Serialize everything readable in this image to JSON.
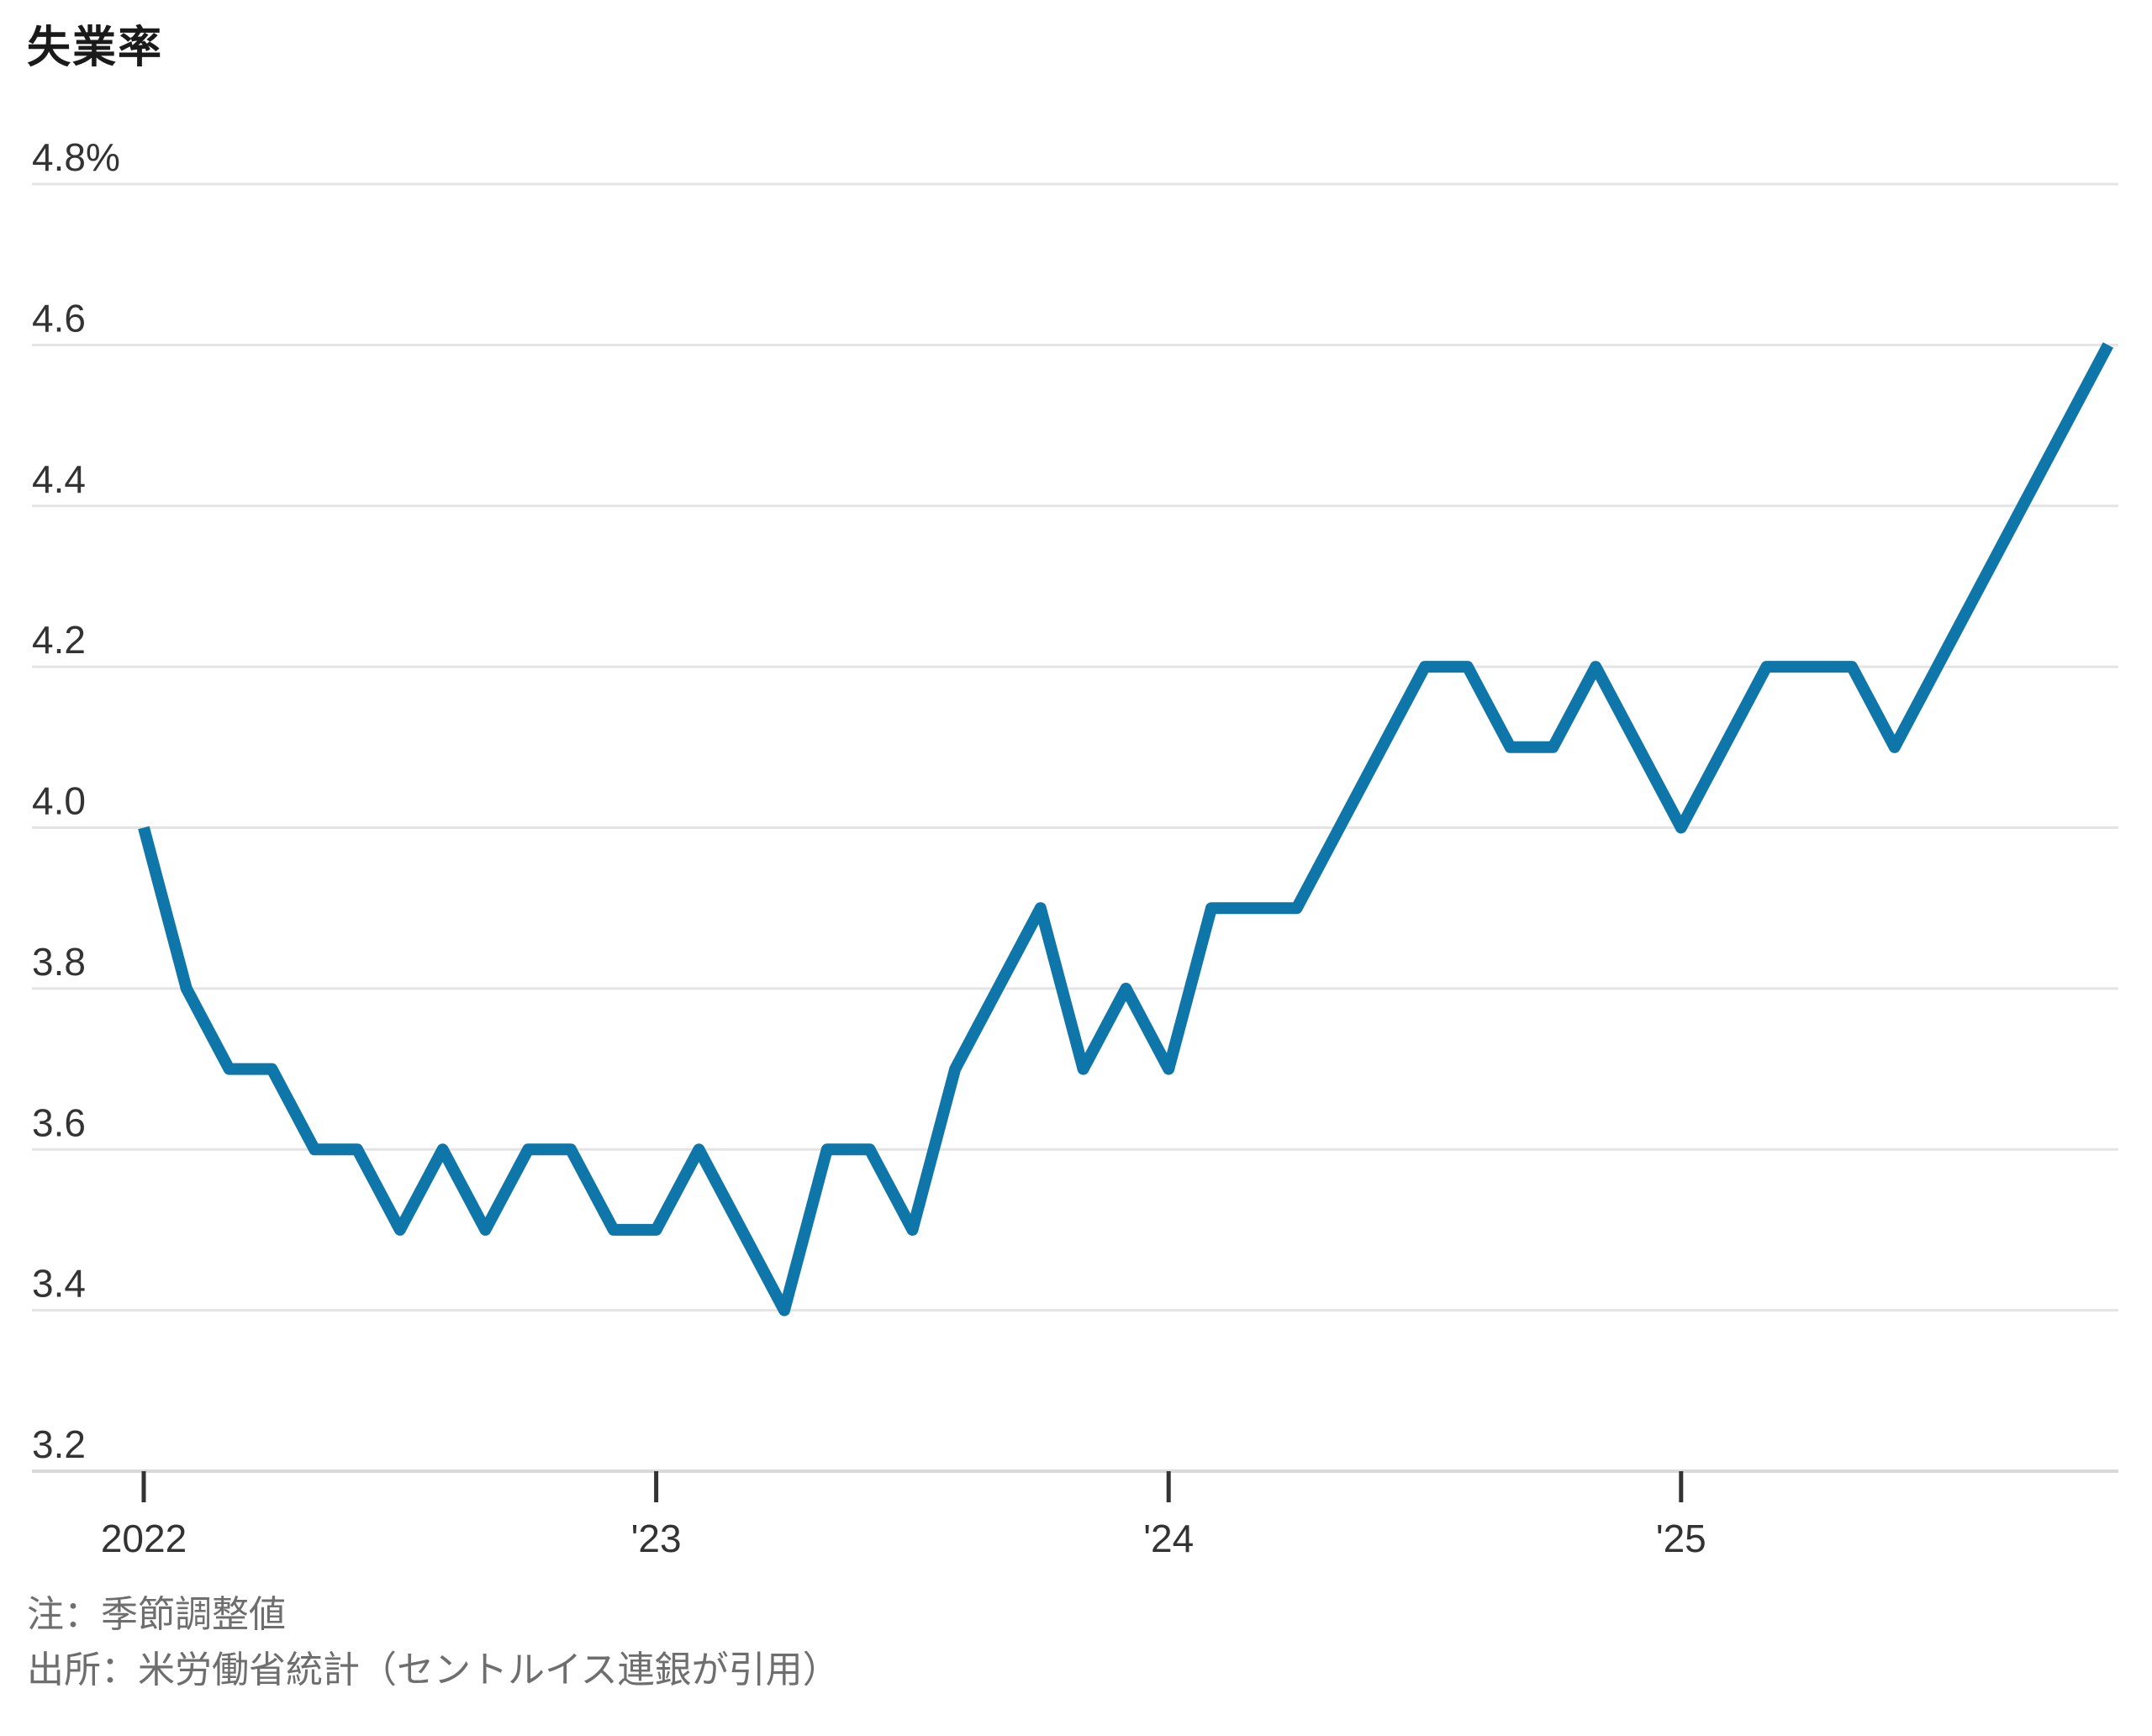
{
  "title": "失業率",
  "notes": {
    "note": "注：季節調整値",
    "source": "出所：米労働省統計（セントルイス連銀が引用）"
  },
  "colors": {
    "line": "#0e76a9",
    "gridline": "#e4e4e4",
    "axis_text": "#333333",
    "note_text": "#6e6e6e",
    "background": "#ffffff"
  },
  "chart_data": {
    "type": "line",
    "title": "失業率",
    "unit": "%",
    "xlabel": "",
    "ylabel": "",
    "ylim": [
      3.2,
      4.8
    ],
    "grid": true,
    "legend_position": "none",
    "line_color": "#0e76a9",
    "y_ticks": [
      4.8,
      4.6,
      4.4,
      4.2,
      4.0,
      3.8,
      3.6,
      3.4,
      3.2
    ],
    "y_tick_labels": [
      "4.8%",
      "4.6",
      "4.4",
      "4.2",
      "4.0",
      "3.8",
      "3.6",
      "3.4",
      "3.2"
    ],
    "x_ticks": [
      {
        "label": "2022",
        "month_index": 0
      },
      {
        "label": "'23",
        "month_index": 12
      },
      {
        "label": "'24",
        "month_index": 24
      },
      {
        "label": "'25",
        "month_index": 36
      }
    ],
    "x": [
      "2022-01",
      "2022-02",
      "2022-03",
      "2022-04",
      "2022-05",
      "2022-06",
      "2022-07",
      "2022-08",
      "2022-09",
      "2022-10",
      "2022-11",
      "2022-12",
      "2023-01",
      "2023-02",
      "2023-03",
      "2023-04",
      "2023-05",
      "2023-06",
      "2023-07",
      "2023-08",
      "2023-09",
      "2023-10",
      "2023-11",
      "2023-12",
      "2024-01",
      "2024-02",
      "2024-03",
      "2024-04",
      "2024-05",
      "2024-06",
      "2024-07",
      "2024-08",
      "2024-09",
      "2024-10",
      "2024-11",
      "2024-12",
      "2025-01",
      "2025-02",
      "2025-03",
      "2025-04",
      "2025-05",
      "2025-06",
      "2025-07",
      "2025-08",
      "2025-09",
      "2025-10",
      "2025-11"
    ],
    "values": [
      4.0,
      3.8,
      3.7,
      3.7,
      3.6,
      3.6,
      3.5,
      3.6,
      3.5,
      3.6,
      3.6,
      3.5,
      3.5,
      3.6,
      3.5,
      3.4,
      3.6,
      3.6,
      3.5,
      3.7,
      3.8,
      3.9,
      3.7,
      3.8,
      3.7,
      3.9,
      3.9,
      3.9,
      4.0,
      4.1,
      4.2,
      4.2,
      4.1,
      4.1,
      4.2,
      4.1,
      4.0,
      4.1,
      4.2,
      4.2,
      4.2,
      4.1,
      4.2,
      4.3,
      4.4,
      4.5,
      4.6
    ]
  }
}
